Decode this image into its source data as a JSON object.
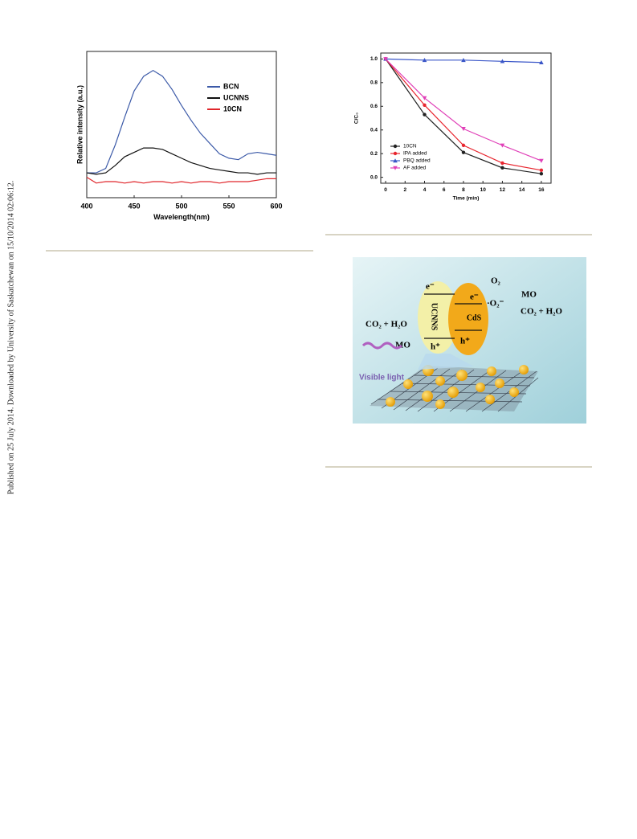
{
  "sidebar": "Published on 25 July 2014. Downloaded by University of Saskatchewan on 15/10/2014 02:06:12.",
  "chart_data": [
    {
      "type": "line",
      "xlabel": "Wavelength(nm)",
      "ylabel": "Relative intensity (a.u.)",
      "x": [
        400,
        410,
        420,
        430,
        440,
        450,
        460,
        470,
        480,
        490,
        500,
        510,
        520,
        530,
        540,
        550,
        560,
        570,
        580,
        590,
        600
      ],
      "xlim": [
        400,
        600
      ],
      "xticks": [
        400,
        450,
        500,
        550,
        600
      ],
      "ylim": [
        0,
        1
      ],
      "legend": "upper right",
      "series": [
        {
          "name": "BCN",
          "color": "#3c5aa8",
          "values": [
            0.17,
            0.17,
            0.2,
            0.36,
            0.55,
            0.73,
            0.83,
            0.87,
            0.83,
            0.74,
            0.63,
            0.53,
            0.44,
            0.37,
            0.3,
            0.27,
            0.26,
            0.3,
            0.31,
            0.3,
            0.29
          ]
        },
        {
          "name": "UCNNS",
          "color": "#111111",
          "values": [
            0.17,
            0.16,
            0.17,
            0.22,
            0.28,
            0.31,
            0.34,
            0.34,
            0.33,
            0.3,
            0.27,
            0.24,
            0.22,
            0.2,
            0.19,
            0.18,
            0.17,
            0.17,
            0.16,
            0.17,
            0.17
          ]
        },
        {
          "name": "10CN",
          "color": "#e0262b",
          "values": [
            0.14,
            0.1,
            0.11,
            0.11,
            0.1,
            0.11,
            0.1,
            0.11,
            0.11,
            0.1,
            0.11,
            0.1,
            0.11,
            0.11,
            0.1,
            0.11,
            0.11,
            0.11,
            0.12,
            0.13,
            0.13
          ]
        }
      ]
    },
    {
      "type": "line",
      "xlabel": "Time (min)",
      "ylabel": "C/C₀",
      "x": [
        0,
        4,
        8,
        12,
        16
      ],
      "xlim": [
        -0.5,
        17
      ],
      "xticks": [
        0,
        2,
        4,
        6,
        8,
        10,
        12,
        14,
        16
      ],
      "ylim": [
        -0.05,
        1.05
      ],
      "yticks": [
        {
          "value": 0,
          "label": "0.0"
        },
        0.2,
        0.4,
        0.6,
        0.8,
        {
          "value": 1,
          "label": "1.0"
        }
      ],
      "legend": "lower left",
      "series": [
        {
          "name": "10CN",
          "color": "#222222",
          "marker": "circle",
          "values": [
            1,
            0.53,
            0.21,
            0.08,
            0.03
          ]
        },
        {
          "name": "IPA added",
          "color": "#e8262f",
          "marker": "circle",
          "values": [
            1,
            0.61,
            0.27,
            0.12,
            0.06
          ]
        },
        {
          "name": "PBQ added",
          "color": "#3a56c8",
          "marker": "triangle-up",
          "values": [
            1,
            0.99,
            0.99,
            0.98,
            0.97
          ]
        },
        {
          "name": "AF added",
          "color": "#e040b8",
          "marker": "triangle-down",
          "values": [
            1,
            0.67,
            0.41,
            0.27,
            0.14
          ]
        }
      ]
    }
  ],
  "diagram": {
    "e_left": "e⁻",
    "e_right": "e⁻",
    "o2": "O₂",
    "superoxide": "·O₂⁻",
    "mo_right": "MO",
    "products_right": "CO₂ + H₂O",
    "ucnns": "UCNNS",
    "cds": "CdS",
    "products_left": "CO₂ + H₂O",
    "mo_left": "MO",
    "h_left": "h⁺",
    "h_right": "h⁺",
    "light": "Visible light"
  }
}
